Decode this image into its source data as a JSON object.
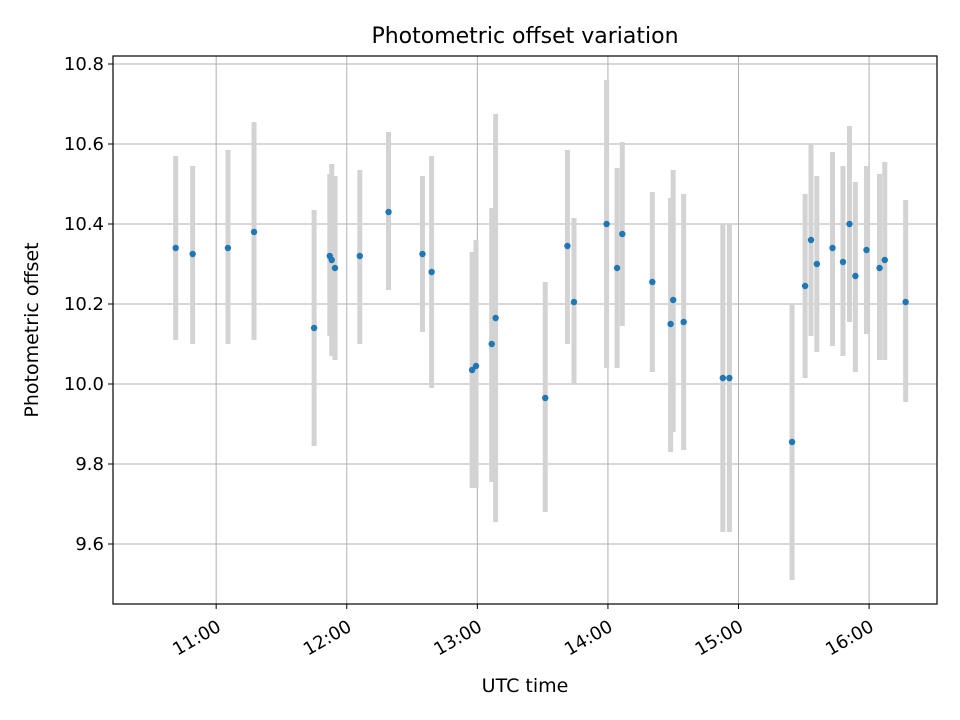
{
  "chart_data": {
    "type": "scatter",
    "title": "Photometric offset variation",
    "xlabel": "UTC time",
    "ylabel": "Photometric offset",
    "x_unit": "hours (UTC)",
    "xlim": [
      10.21,
      16.52
    ],
    "ylim": [
      9.45,
      10.82
    ],
    "grid": true,
    "x_ticks": [
      {
        "value": 11,
        "label": "11:00"
      },
      {
        "value": 12,
        "label": "12:00"
      },
      {
        "value": 13,
        "label": "13:00"
      },
      {
        "value": 14,
        "label": "14:00"
      },
      {
        "value": 15,
        "label": "15:00"
      },
      {
        "value": 16,
        "label": "16:00"
      }
    ],
    "y_ticks": [
      {
        "value": 9.6,
        "label": "9.6"
      },
      {
        "value": 9.8,
        "label": "9.8"
      },
      {
        "value": 10.0,
        "label": "10.0"
      },
      {
        "value": 10.2,
        "label": "10.2"
      },
      {
        "value": 10.4,
        "label": "10.4"
      },
      {
        "value": 10.6,
        "label": "10.6"
      },
      {
        "value": 10.8,
        "label": "10.8"
      }
    ],
    "colors": {
      "point": "#1f77b4",
      "errorbar": "#d3d3d3",
      "grid": "#b0b0b0",
      "axis": "#000000"
    },
    "series": [
      {
        "name": "offset",
        "points": [
          {
            "x": 10.69,
            "y": 10.34,
            "lo": 10.11,
            "hi": 10.57
          },
          {
            "x": 10.82,
            "y": 10.325,
            "lo": 10.1,
            "hi": 10.545
          },
          {
            "x": 11.09,
            "y": 10.34,
            "lo": 10.1,
            "hi": 10.585
          },
          {
            "x": 11.29,
            "y": 10.38,
            "lo": 10.11,
            "hi": 10.655
          },
          {
            "x": 11.75,
            "y": 10.14,
            "lo": 9.845,
            "hi": 10.435
          },
          {
            "x": 11.87,
            "y": 10.32,
            "lo": 10.12,
            "hi": 10.525
          },
          {
            "x": 11.885,
            "y": 10.31,
            "lo": 10.07,
            "hi": 10.55
          },
          {
            "x": 11.91,
            "y": 10.29,
            "lo": 10.06,
            "hi": 10.52
          },
          {
            "x": 12.1,
            "y": 10.32,
            "lo": 10.1,
            "hi": 10.535
          },
          {
            "x": 12.32,
            "y": 10.43,
            "lo": 10.235,
            "hi": 10.63
          },
          {
            "x": 12.58,
            "y": 10.325,
            "lo": 10.13,
            "hi": 10.52
          },
          {
            "x": 12.65,
            "y": 10.28,
            "lo": 9.99,
            "hi": 10.57
          },
          {
            "x": 12.96,
            "y": 10.035,
            "lo": 9.74,
            "hi": 10.33
          },
          {
            "x": 12.99,
            "y": 10.045,
            "lo": 9.74,
            "hi": 10.36
          },
          {
            "x": 13.11,
            "y": 10.1,
            "lo": 9.755,
            "hi": 10.44
          },
          {
            "x": 13.14,
            "y": 10.165,
            "lo": 9.655,
            "hi": 10.675
          },
          {
            "x": 13.52,
            "y": 9.965,
            "lo": 9.68,
            "hi": 10.255
          },
          {
            "x": 13.69,
            "y": 10.345,
            "lo": 10.1,
            "hi": 10.585
          },
          {
            "x": 13.74,
            "y": 10.205,
            "lo": 10.0,
            "hi": 10.415
          },
          {
            "x": 13.99,
            "y": 10.4,
            "lo": 10.04,
            "hi": 10.76
          },
          {
            "x": 14.07,
            "y": 10.29,
            "lo": 10.04,
            "hi": 10.54
          },
          {
            "x": 14.11,
            "y": 10.375,
            "lo": 10.145,
            "hi": 10.605
          },
          {
            "x": 14.34,
            "y": 10.255,
            "lo": 10.03,
            "hi": 10.48
          },
          {
            "x": 14.48,
            "y": 10.15,
            "lo": 9.83,
            "hi": 10.465
          },
          {
            "x": 14.5,
            "y": 10.21,
            "lo": 9.88,
            "hi": 10.535
          },
          {
            "x": 14.58,
            "y": 10.155,
            "lo": 9.835,
            "hi": 10.475
          },
          {
            "x": 14.88,
            "y": 10.015,
            "lo": 9.63,
            "hi": 10.4
          },
          {
            "x": 14.93,
            "y": 10.015,
            "lo": 9.63,
            "hi": 10.4
          },
          {
            "x": 15.41,
            "y": 9.855,
            "lo": 9.51,
            "hi": 10.2
          },
          {
            "x": 15.51,
            "y": 10.245,
            "lo": 10.015,
            "hi": 10.475
          },
          {
            "x": 15.555,
            "y": 10.36,
            "lo": 10.12,
            "hi": 10.6
          },
          {
            "x": 15.6,
            "y": 10.3,
            "lo": 10.08,
            "hi": 10.52
          },
          {
            "x": 15.72,
            "y": 10.34,
            "lo": 10.095,
            "hi": 10.58
          },
          {
            "x": 15.8,
            "y": 10.305,
            "lo": 10.07,
            "hi": 10.545
          },
          {
            "x": 15.85,
            "y": 10.4,
            "lo": 10.155,
            "hi": 10.645
          },
          {
            "x": 15.895,
            "y": 10.27,
            "lo": 10.03,
            "hi": 10.505
          },
          {
            "x": 15.98,
            "y": 10.335,
            "lo": 10.125,
            "hi": 10.545
          },
          {
            "x": 16.08,
            "y": 10.29,
            "lo": 10.06,
            "hi": 10.525
          },
          {
            "x": 16.12,
            "y": 10.31,
            "lo": 10.06,
            "hi": 10.555
          },
          {
            "x": 16.28,
            "y": 10.205,
            "lo": 9.955,
            "hi": 10.46
          }
        ]
      }
    ]
  }
}
